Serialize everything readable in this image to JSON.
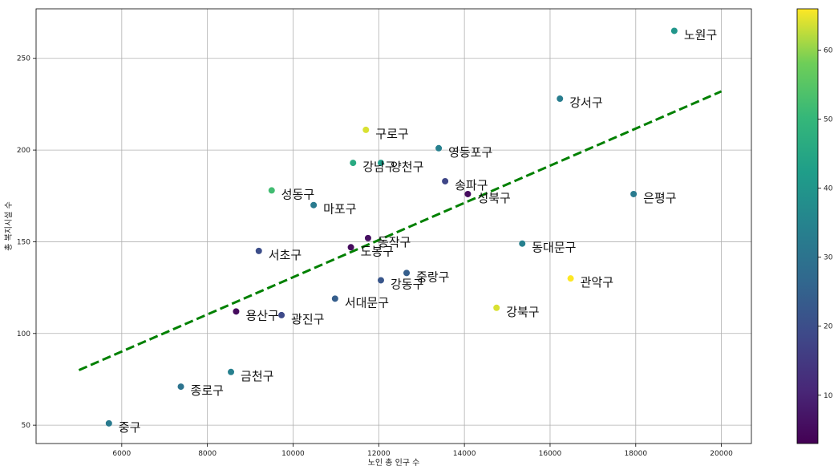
{
  "chart_data": {
    "type": "scatter",
    "title": "",
    "xlabel": "노인 총 인구 수",
    "ylabel": "총 복지시설 수",
    "xlim": [
      4000,
      20700
    ],
    "ylim": [
      40,
      277
    ],
    "xticks": [
      6000,
      8000,
      10000,
      12000,
      14000,
      16000,
      18000,
      20000
    ],
    "yticks": [
      50,
      100,
      150,
      200,
      250
    ],
    "grid": true,
    "colormap": "viridis",
    "colorbar": {
      "min": 3,
      "max": 66,
      "ticks": [
        10,
        20,
        30,
        40,
        50,
        60
      ]
    },
    "points": [
      {
        "label": "노원구",
        "x": 18900,
        "y": 265,
        "c": 40
      },
      {
        "label": "강서구",
        "x": 16230,
        "y": 228,
        "c": 33
      },
      {
        "label": "구로구",
        "x": 11700,
        "y": 211,
        "c": 64
      },
      {
        "label": "영등포구",
        "x": 13400,
        "y": 201,
        "c": 34
      },
      {
        "label": "강남구",
        "x": 11400,
        "y": 193,
        "c": 46
      },
      {
        "label": "양천구",
        "x": 12050,
        "y": 193,
        "c": 42
      },
      {
        "label": "송파구",
        "x": 13550,
        "y": 183,
        "c": 18
      },
      {
        "label": "성동구",
        "x": 9500,
        "y": 178,
        "c": 52
      },
      {
        "label": "성북구",
        "x": 14080,
        "y": 176,
        "c": 5
      },
      {
        "label": "은평구",
        "x": 17950,
        "y": 176,
        "c": 32
      },
      {
        "label": "마포구",
        "x": 10480,
        "y": 170,
        "c": 32
      },
      {
        "label": "동작구",
        "x": 11750,
        "y": 152,
        "c": 6
      },
      {
        "label": "동대문구",
        "x": 15350,
        "y": 149,
        "c": 34
      },
      {
        "label": "도봉구",
        "x": 11350,
        "y": 147,
        "c": 5
      },
      {
        "label": "서초구",
        "x": 9200,
        "y": 145,
        "c": 20
      },
      {
        "label": "중랑구",
        "x": 12650,
        "y": 133,
        "c": 24
      },
      {
        "label": "관악구",
        "x": 16480,
        "y": 130,
        "c": 66
      },
      {
        "label": "강동구",
        "x": 12050,
        "y": 129,
        "c": 22
      },
      {
        "label": "서대문구",
        "x": 10980,
        "y": 119,
        "c": 24
      },
      {
        "label": "강북구",
        "x": 14750,
        "y": 114,
        "c": 64
      },
      {
        "label": "용산구",
        "x": 8670,
        "y": 112,
        "c": 5
      },
      {
        "label": "광진구",
        "x": 9730,
        "y": 110,
        "c": 19
      },
      {
        "label": "금천구",
        "x": 8550,
        "y": 79,
        "c": 34
      },
      {
        "label": "종로구",
        "x": 7380,
        "y": 71,
        "c": 30
      },
      {
        "label": "중구",
        "x": 5700,
        "y": 51,
        "c": 32
      }
    ],
    "trendline": {
      "color": "#008000",
      "style": "dashed",
      "points": [
        {
          "x": 5000,
          "y": 80
        },
        {
          "x": 20000,
          "y": 232
        }
      ]
    }
  }
}
